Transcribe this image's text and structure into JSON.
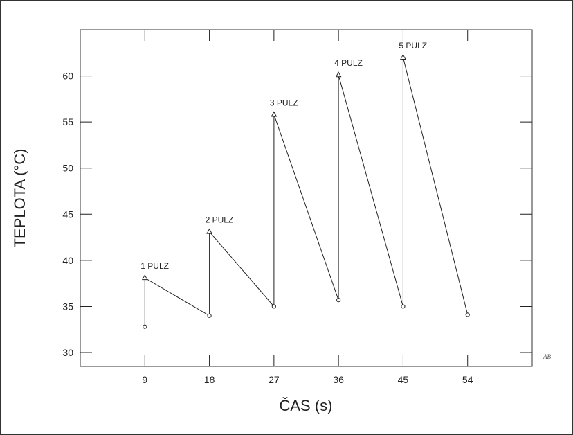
{
  "chart_data": {
    "type": "line",
    "xlabel": "ČAS (s)",
    "ylabel": "TEPLOTA (°C)",
    "xlim": [
      0,
      63
    ],
    "ylim": [
      28.5,
      65
    ],
    "x_ticks": [
      9,
      18,
      27,
      36,
      45,
      54
    ],
    "y_ticks": [
      30,
      35,
      40,
      45,
      50,
      55,
      60
    ],
    "grid": false,
    "series": [
      {
        "points": [
          {
            "x": 9,
            "y": 32.8,
            "marker": "circle"
          },
          {
            "x": 9,
            "y": 38.1,
            "marker": "triangle",
            "label": "1 PULZ"
          },
          {
            "x": 18,
            "y": 34.0,
            "marker": "circle"
          },
          {
            "x": 18,
            "y": 43.1,
            "marker": "triangle",
            "label": "2 PULZ"
          },
          {
            "x": 27,
            "y": 35.0,
            "marker": "circle"
          },
          {
            "x": 27,
            "y": 55.8,
            "marker": "triangle",
            "label": "3 PULZ"
          },
          {
            "x": 36,
            "y": 35.7,
            "marker": "circle"
          },
          {
            "x": 36,
            "y": 60.1,
            "marker": "triangle",
            "label": "4 PULZ"
          },
          {
            "x": 45,
            "y": 35.0,
            "marker": "circle"
          },
          {
            "x": 45,
            "y": 62.0,
            "marker": "triangle",
            "label": "5 PULZ"
          },
          {
            "x": 54,
            "y": 34.1,
            "marker": "circle"
          }
        ]
      }
    ]
  },
  "corner_mark": "AB"
}
